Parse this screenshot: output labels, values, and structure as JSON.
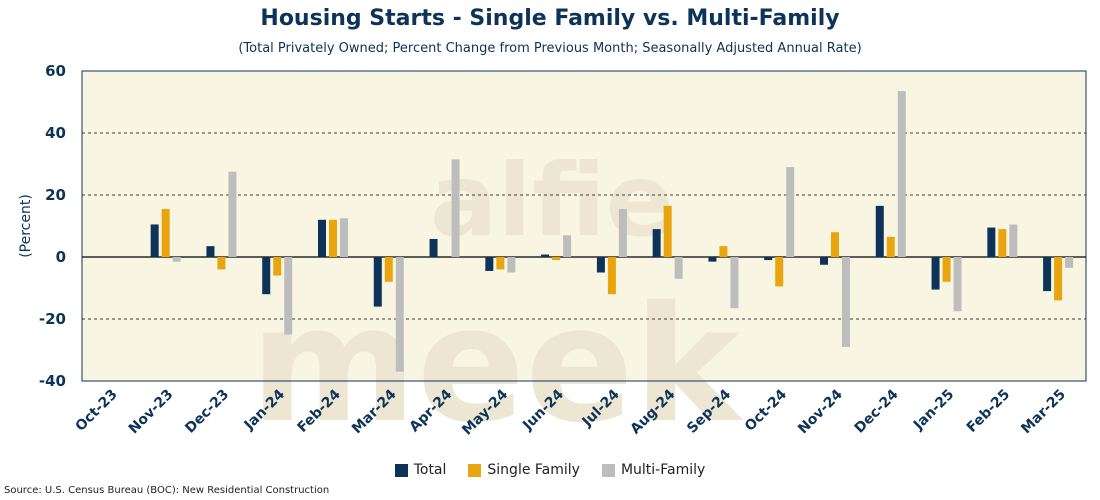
{
  "chart_data": {
    "type": "bar",
    "title": "Housing Starts - Single Family vs. Multi-Family",
    "subtitle": "(Total Privately Owned; Percent Change from Previous Month; Seasonally Adjusted Annual Rate)",
    "ylabel": "(Percent)",
    "xlabel": "",
    "ylim": [
      -40,
      60
    ],
    "yticks": [
      -40,
      -20,
      0,
      20,
      40,
      60
    ],
    "grid": true,
    "legend_position": "bottom",
    "categories": [
      "Oct-23",
      "Nov-23",
      "Dec-23",
      "Jan-24",
      "Feb-24",
      "Mar-24",
      "Apr-24",
      "May-24",
      "Jun-24",
      "Jul-24",
      "Aug-24",
      "Sep-24",
      "Oct-24",
      "Nov-24",
      "Dec-24",
      "Jan-25",
      "Feb-25",
      "Mar-25"
    ],
    "series": [
      {
        "name": "Total",
        "color": "#0e3358",
        "values": [
          0,
          10.5,
          3.5,
          -12,
          12,
          -16,
          5.8,
          -4.5,
          0.8,
          -5,
          9,
          -1.5,
          -1,
          -2.5,
          16.5,
          -10.5,
          9.5,
          -11
        ]
      },
      {
        "name": "Single Family",
        "color": "#e8a50e",
        "values": [
          0,
          15.5,
          -4,
          -6,
          12,
          -8,
          0,
          -4,
          -1,
          -12,
          16.5,
          3.5,
          -9.5,
          8,
          6.5,
          -8,
          9,
          -14
        ]
      },
      {
        "name": "Multi-Family",
        "color": "#bdbdbd",
        "values": [
          0,
          -1.5,
          27.5,
          -25,
          12.5,
          -37,
          31.5,
          -5,
          7,
          15.5,
          -7,
          -16.5,
          29,
          -29,
          53.5,
          -17.5,
          10.5,
          -3.5
        ]
      }
    ],
    "watermark": "alfie meek"
  },
  "source": "Source: U.S. Census Bureau (BOC): New Residential Construction"
}
